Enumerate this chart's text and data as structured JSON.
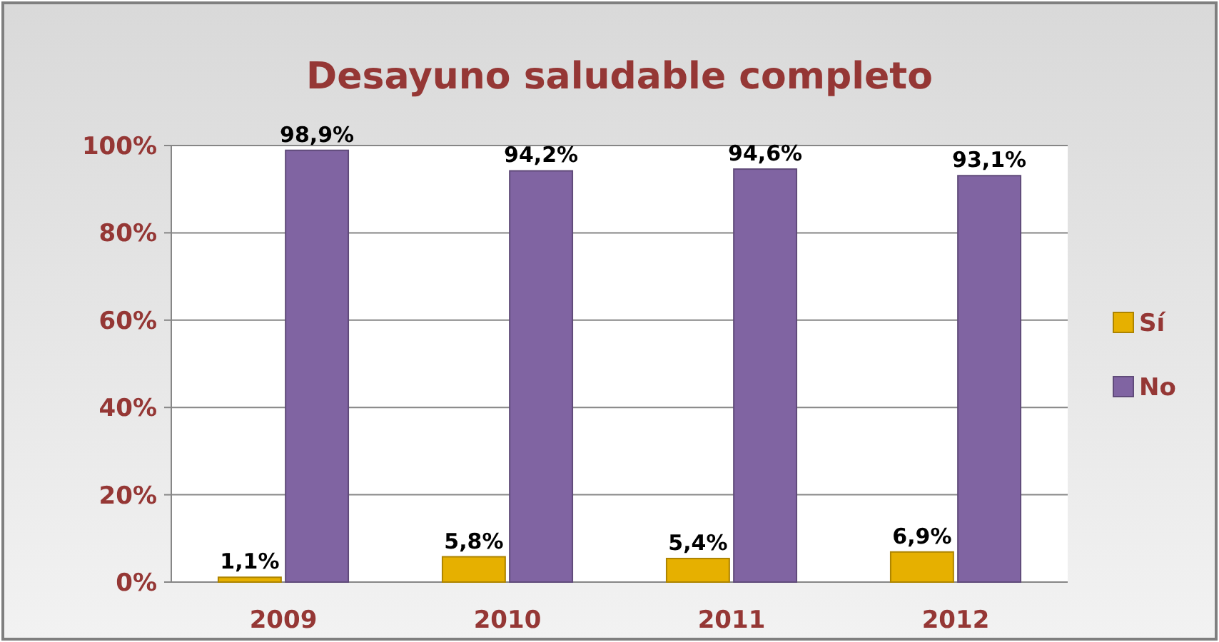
{
  "chart_data": {
    "type": "bar",
    "title": "Desayuno saludable completo",
    "categories": [
      "2009",
      "2010",
      "2011",
      "2012"
    ],
    "series": [
      {
        "name": "Sí",
        "color": "#e6b000",
        "values": [
          1.1,
          5.8,
          5.4,
          6.9
        ],
        "value_labels": [
          "1,1%",
          "5,8%",
          "5,4%",
          "6,9%"
        ]
      },
      {
        "name": "No",
        "color": "#8064a2",
        "values": [
          98.9,
          94.2,
          94.6,
          93.1
        ],
        "value_labels": [
          "98,9%",
          "94,2%",
          "94,6%",
          "93,1%"
        ]
      }
    ],
    "ylim": [
      0,
      100
    ],
    "yticks": [
      {
        "value": 0,
        "label": "0%"
      },
      {
        "value": 20,
        "label": "20%"
      },
      {
        "value": 40,
        "label": "40%"
      },
      {
        "value": 60,
        "label": "60%"
      },
      {
        "value": 80,
        "label": "80%"
      },
      {
        "value": 100,
        "label": "100%"
      }
    ],
    "grid": "y",
    "legend": "right"
  }
}
